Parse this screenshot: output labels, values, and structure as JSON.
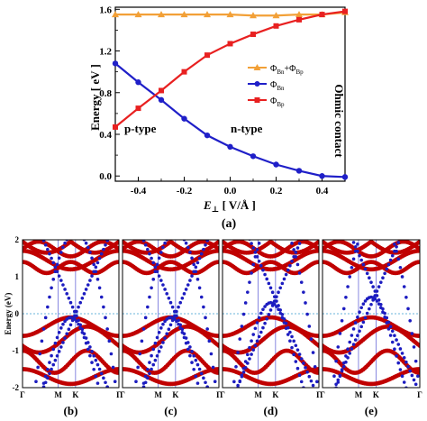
{
  "chart_data": [
    {
      "type": "line",
      "panel_label": "(a)",
      "xlabel_main": "E",
      "xlabel_sub": "⊥",
      "xlabel_rest": " [ V/Å ]",
      "ylabel": "Energy [ eV ]",
      "xlim": [
        -0.5,
        0.5
      ],
      "ylim": [
        -0.05,
        1.62
      ],
      "xticks": [
        "-0.4",
        "-0.2",
        "0.0",
        "0.2",
        "0.4"
      ],
      "xtick_values": [
        -0.4,
        -0.2,
        0.0,
        0.2,
        0.4
      ],
      "yticks": [
        "0.0",
        "0.4",
        "0.8",
        "1.2",
        "1.6"
      ],
      "ytick_values": [
        0.0,
        0.4,
        0.8,
        1.2,
        1.6
      ],
      "grid": false,
      "legend_position": "center-right",
      "x": [
        -0.5,
        -0.4,
        -0.3,
        -0.2,
        -0.1,
        0.0,
        0.1,
        0.2,
        0.3,
        0.4,
        0.5
      ],
      "series": [
        {
          "name": "ΦBn+ΦBp",
          "base": "Φ",
          "sub": "Bn",
          "plus": "+Φ",
          "sub2": "Bp",
          "color": "#f2a037",
          "marker": "triangle",
          "values": [
            1.55,
            1.55,
            1.55,
            1.55,
            1.55,
            1.55,
            1.54,
            1.54,
            1.55,
            1.55,
            1.57
          ]
        },
        {
          "name": "ΦBn",
          "base": "Φ",
          "sub": "Bn",
          "color": "#1f1fc8",
          "marker": "circle",
          "values": [
            1.08,
            0.9,
            0.73,
            0.55,
            0.39,
            0.28,
            0.19,
            0.11,
            0.05,
            0.0,
            -0.01
          ]
        },
        {
          "name": "ΦBp",
          "base": "Φ",
          "sub": "Bp",
          "color": "#e82020",
          "marker": "square",
          "values": [
            0.47,
            0.65,
            0.82,
            1.0,
            1.16,
            1.27,
            1.36,
            1.44,
            1.5,
            1.55,
            1.58
          ]
        }
      ],
      "annotations": {
        "left": "p-type",
        "middle": "n-type",
        "right": "Ohmic contact"
      }
    },
    {
      "type": "band-structure",
      "ylabel": "Energy (eV)",
      "ylim": [
        -2,
        2
      ],
      "yticks": [
        "-2",
        "-1",
        "0",
        "1",
        "2"
      ],
      "ytick_values": [
        -2,
        -1,
        0,
        1,
        2
      ],
      "fermi_level": 0,
      "kpath": [
        "Γ",
        "M",
        "K",
        "Γ"
      ],
      "colors": {
        "red_bands": "#c00000",
        "blue_bands": "#1c1cc0",
        "fermi": "#3a9fd0"
      },
      "panels": [
        {
          "label": "(b)",
          "blue_shift": 0.0
        },
        {
          "label": "(c)",
          "blue_shift": 0.0
        },
        {
          "label": "(d)",
          "blue_shift": 0.4
        },
        {
          "label": "(e)",
          "blue_shift": 0.55
        }
      ]
    }
  ]
}
